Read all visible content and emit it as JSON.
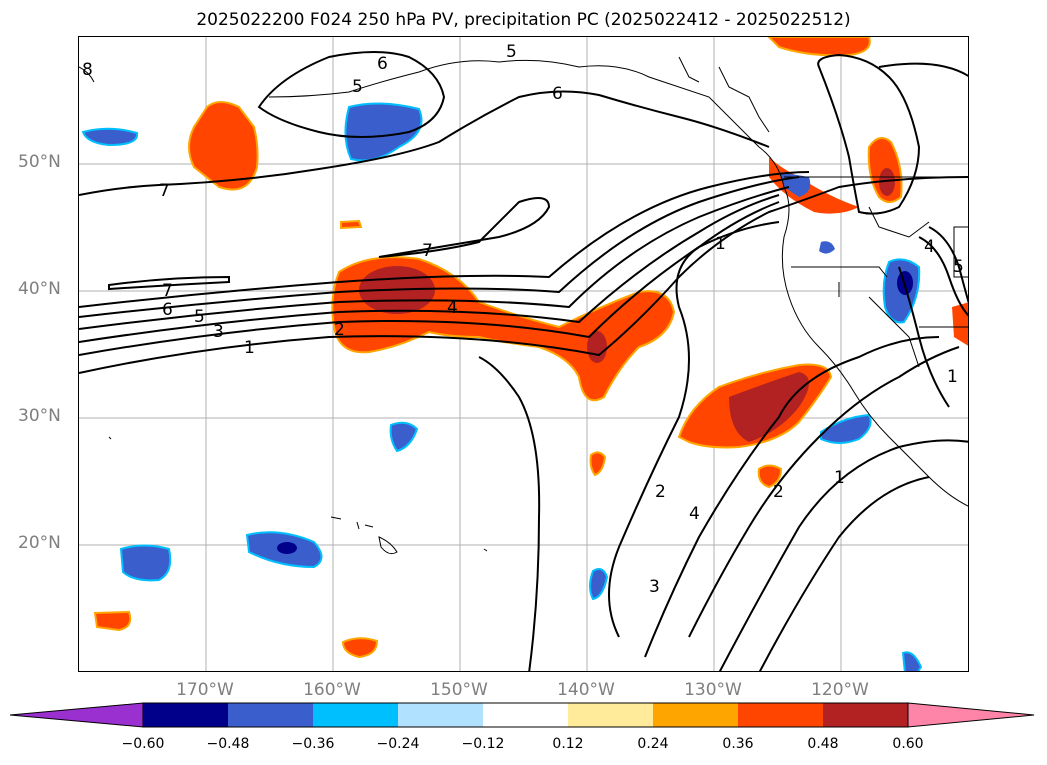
{
  "title": "2025022200 F024 250 hPa PV, precipitation PC (2025022412 - 2025022512)",
  "lat_labels": [
    "50°N",
    "40°N",
    "30°N",
    "20°N"
  ],
  "lon_labels": [
    "170°W",
    "160°W",
    "150°W",
    "140°W",
    "130°W",
    "120°W"
  ],
  "contour_labels": [
    "8",
    "6",
    "5",
    "5",
    "6",
    "7",
    "7",
    "7",
    "6",
    "5",
    "3",
    "2",
    "1",
    "4",
    "1",
    "2",
    "4",
    "3",
    "2",
    "1",
    "4",
    "1",
    "5"
  ],
  "colorbar": {
    "ticks": [
      "−0.60",
      "−0.48",
      "−0.36",
      "−0.24",
      "−0.12",
      "0.12",
      "0.24",
      "0.36",
      "0.48",
      "0.60"
    ],
    "colors": [
      "#9b30d0",
      "#00008b",
      "#3a5fcd",
      "#00bfff",
      "#b0e2ff",
      "#ffffff",
      "#ffeb99",
      "#ffa500",
      "#ff4500",
      "#b22222",
      "#ff85a8"
    ]
  },
  "legend_values": {
    "min": -0.6,
    "max": 0.6,
    "step": 0.12,
    "extend": "both"
  }
}
